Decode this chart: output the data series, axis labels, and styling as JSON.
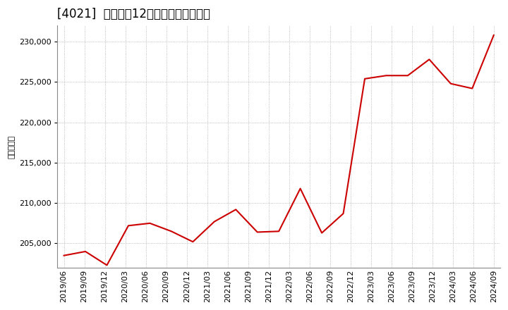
{
  "title": "[4021]  売上高の12か月移動合計の推移",
  "ylabel": "（百万円）",
  "line_color": "#cc0000",
  "bg_color": "#ffffff",
  "grid_color": "#aaaaaa",
  "dates": [
    "2019/06",
    "2019/09",
    "2019/12",
    "2020/03",
    "2020/06",
    "2020/09",
    "2020/12",
    "2021/03",
    "2021/06",
    "2021/09",
    "2021/12",
    "2022/03",
    "2022/06",
    "2022/09",
    "2022/12",
    "2023/03",
    "2023/06",
    "2023/09",
    "2023/12",
    "2024/03",
    "2024/06"
  ],
  "values": [
    203500,
    204000,
    202300,
    207200,
    207500,
    206500,
    205200,
    207700,
    209200,
    206400,
    206500,
    211800,
    206300,
    208700,
    225400,
    225800,
    225800,
    227800,
    224800,
    224200,
    230800
  ],
  "ylim_min": 202000,
  "ylim_max": 232000,
  "yticks": [
    205000,
    210000,
    215000,
    220000,
    225000,
    230000
  ],
  "xtick_labels": [
    "2019/06",
    "2019/09",
    "2019/12",
    "2020/03",
    "2020/06",
    "2020/09",
    "2020/12",
    "2021/03",
    "2021/06",
    "2021/09",
    "2021/12",
    "2022/03",
    "2022/06",
    "2022/09",
    "2022/12",
    "2023/03",
    "2023/06",
    "2023/09",
    "2023/12",
    "2024/03",
    "2024/06",
    "2024/09"
  ],
  "title_fontsize": 12,
  "ylabel_fontsize": 8,
  "tick_fontsize": 8,
  "linewidth": 1.5
}
